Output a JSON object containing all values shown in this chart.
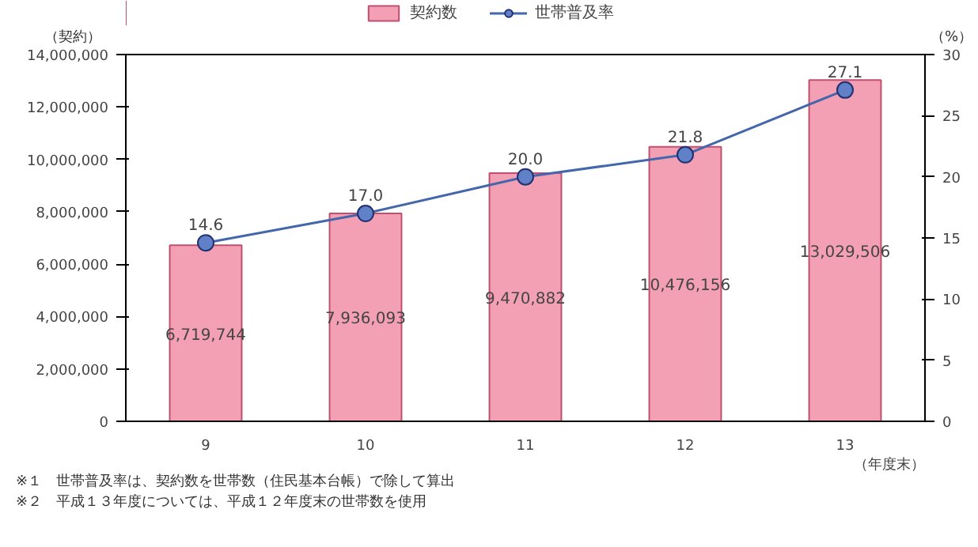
{
  "chart_data": {
    "type": "bar",
    "categories": [
      "9",
      "10",
      "11",
      "12",
      "13"
    ],
    "xlabel": "（年度末）",
    "ylabel": "（契約）",
    "y2label": "（%）",
    "series": [
      {
        "name": "契約数",
        "color": "#f4a0b4",
        "values": [
          6719744,
          7936093,
          9470882,
          10476156,
          13029506
        ],
        "value_labels": [
          "6,719,744",
          "7,936,093",
          "9,470,882",
          "10,476,156",
          "13,029,506"
        ]
      },
      {
        "name": "世帯普及率",
        "type": "line",
        "axis": "y2",
        "color": "#4466aa",
        "marker": "circle",
        "values": [
          14.6,
          17.0,
          20.0,
          21.8,
          27.1
        ],
        "value_labels": [
          "14.6",
          "17.0",
          "20.0",
          "21.8",
          "27.1"
        ]
      }
    ],
    "ylim": [
      0,
      14000000
    ],
    "yticks": [
      {
        "value": 0,
        "label": "0"
      },
      {
        "value": 2000000,
        "label": "2,000,000"
      },
      {
        "value": 4000000,
        "label": "4,000,000"
      },
      {
        "value": 6000000,
        "label": "6,000,000"
      },
      {
        "value": 8000000,
        "label": "8,000,000"
      },
      {
        "value": 10000000,
        "label": "10,000,000"
      },
      {
        "value": 12000000,
        "label": "12,000,000"
      },
      {
        "value": 14000000,
        "label": "14,000,000"
      }
    ],
    "y2lim": [
      0,
      30
    ],
    "y2ticks": [
      0,
      5,
      10,
      15,
      20,
      25,
      30
    ],
    "legend": "top",
    "grid": false,
    "annotations": [
      "※１　世帯普及率は、契約数を世帯数（住民基本台帳）で除して算出",
      "※２　平成１３年度については、平成１２年度末の世帯数を使用"
    ]
  }
}
